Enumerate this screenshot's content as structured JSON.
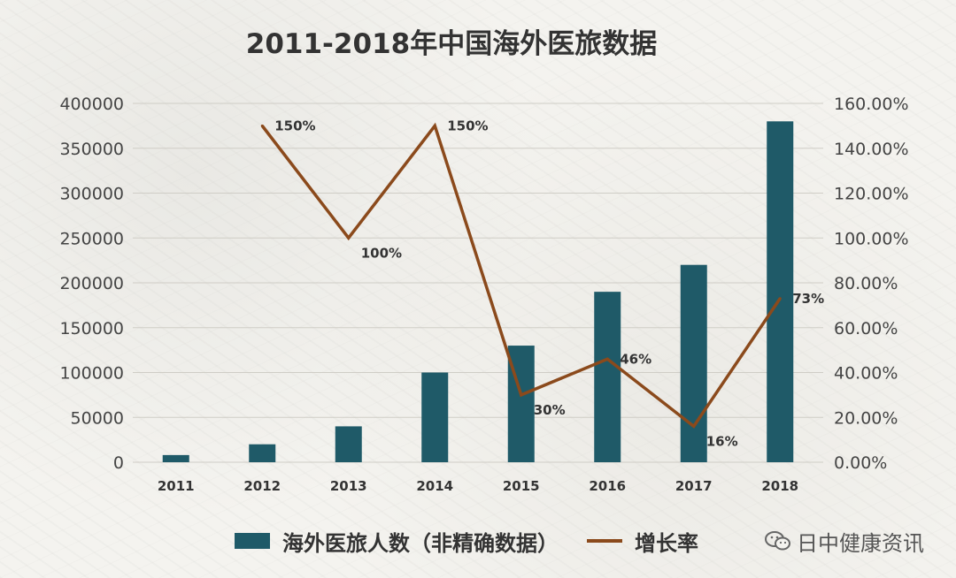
{
  "chart_data": {
    "type": "bar",
    "title": "2011-2018年中国海外医旅数据",
    "categories": [
      "2011",
      "2012",
      "2013",
      "2014",
      "2015",
      "2016",
      "2017",
      "2018"
    ],
    "series": [
      {
        "name": "海外医旅人数（非精确数据）",
        "type": "bar",
        "axis": "left",
        "values": [
          8000,
          20000,
          40000,
          100000,
          130000,
          190000,
          220000,
          380000
        ],
        "color": "#1f5a68"
      },
      {
        "name": "增长率",
        "type": "line",
        "axis": "right",
        "values": [
          null,
          150,
          100,
          150,
          30,
          46,
          16,
          73
        ],
        "data_labels": [
          "",
          "150%",
          "100%",
          "150%",
          "30%",
          "46%",
          "16%",
          "73%"
        ],
        "color": "#8b4a1c"
      }
    ],
    "y_left": {
      "range": [
        0,
        400000
      ],
      "ticks": [
        "0",
        "50000",
        "100000",
        "150000",
        "200000",
        "250000",
        "300000",
        "350000",
        "400000"
      ]
    },
    "y_right": {
      "range": [
        0,
        160
      ],
      "ticks": [
        "0.00%",
        "20.00%",
        "40.00%",
        "60.00%",
        "80.00%",
        "100.00%",
        "120.00%",
        "140.00%",
        "160.00%"
      ]
    },
    "grid": true,
    "legend_position": "bottom"
  },
  "legend": {
    "bar_label": "海外医旅人数（非精确数据）",
    "line_label": "增长率"
  },
  "watermark": {
    "text": "日中健康资讯",
    "icon": "wechat-icon"
  }
}
